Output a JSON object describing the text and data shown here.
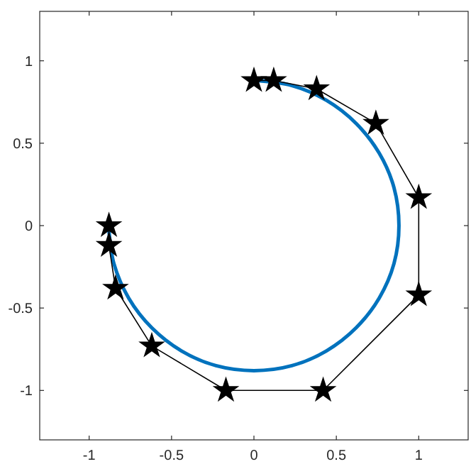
{
  "chart_data": {
    "type": "line",
    "xlim": [
      -1.3,
      1.3
    ],
    "ylim": [
      -1.3,
      1.3
    ],
    "xticks": [
      -1,
      -0.5,
      0,
      0.5,
      1
    ],
    "yticks": [
      -1,
      -0.5,
      0,
      0.5,
      1
    ],
    "grid": false,
    "line_style": "solid",
    "series": [
      {
        "color": "#0072bd",
        "marker": "none",
        "x": [
          0,
          0.23,
          0.44,
          0.62,
          0.76,
          0.85,
          0.88,
          0.85,
          0.76,
          0.62,
          0.44,
          0.23,
          0,
          -0.23,
          -0.44,
          -0.62,
          -0.76,
          -0.85,
          -0.88
        ],
        "values": [
          0.88,
          0.85,
          0.76,
          0.62,
          0.44,
          0.23,
          0,
          -0.23,
          -0.44,
          -0.62,
          -0.76,
          -0.85,
          -0.88,
          -0.85,
          -0.76,
          -0.62,
          -0.44,
          -0.23,
          -0.03
        ]
      },
      {
        "color": "#000000",
        "marker": "star",
        "x": [
          0,
          0.12,
          0.38,
          0.74,
          1.0,
          1.0,
          0.42,
          -0.17,
          -0.62,
          -0.84,
          -0.88,
          -0.88
        ],
        "values": [
          0.88,
          0.88,
          0.83,
          0.62,
          0.17,
          -0.42,
          -1.0,
          -1.0,
          -0.73,
          -0.38,
          -0.12,
          0
        ]
      }
    ]
  }
}
